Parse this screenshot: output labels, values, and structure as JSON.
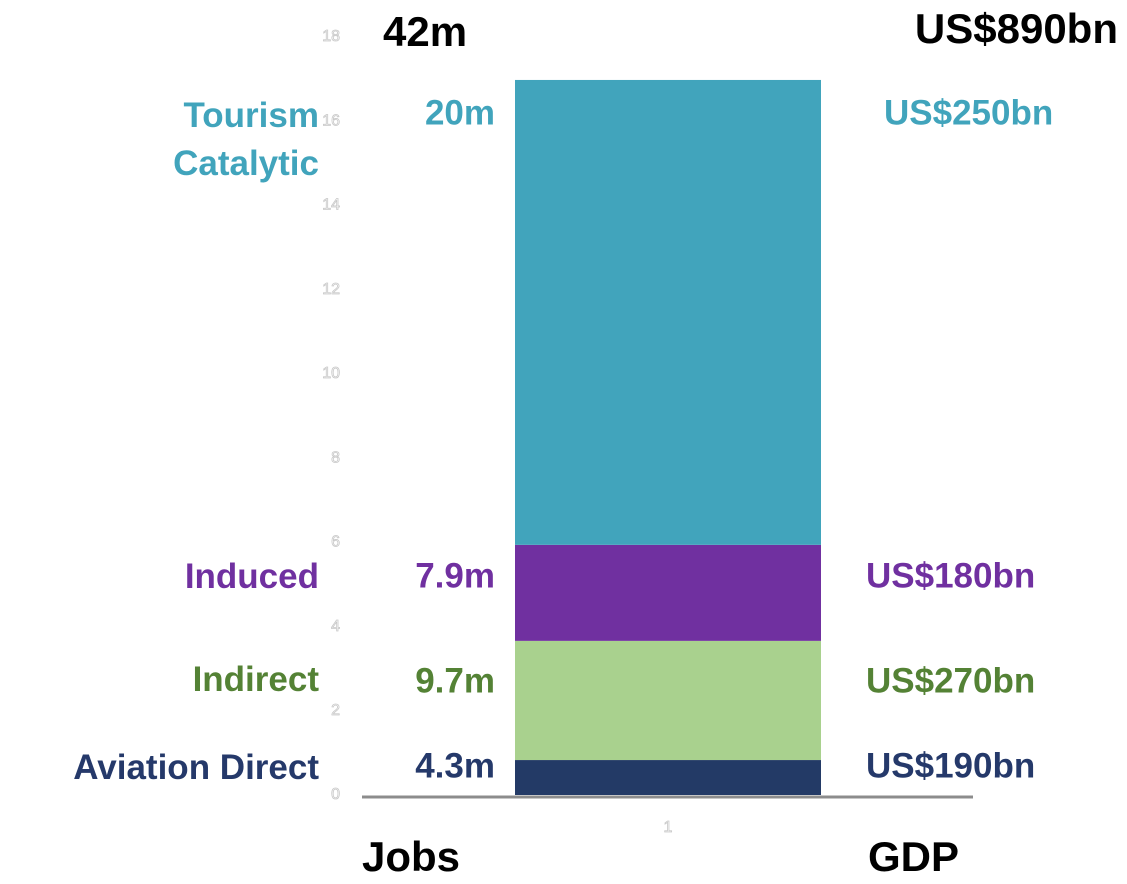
{
  "chart_data": {
    "type": "bar",
    "stacked": true,
    "categories": [
      "1"
    ],
    "series": [
      {
        "name": "Aviation Direct",
        "color": "#233a66",
        "label_color": "#25396a",
        "values": [
          0.83
        ],
        "jobs": "4.3m",
        "gdp": "US$190bn"
      },
      {
        "name": "Indirect",
        "color": "#a9d18e",
        "label_color": "#548235",
        "values": [
          2.83
        ],
        "jobs": "9.7m",
        "gdp": "US$270bn"
      },
      {
        "name": "Induced",
        "color": "#7030a0",
        "label_color": "#7030a0",
        "values": [
          2.28
        ],
        "jobs": "7.9m",
        "gdp": "US$180bn"
      },
      {
        "name": "Tourism Catalytic",
        "color": "#41a4bc",
        "label_color": "#41a4bc",
        "values": [
          11.04
        ],
        "jobs": "20m",
        "gdp": "US$250bn"
      }
    ],
    "ylim": [
      0,
      18
    ],
    "yticks": [
      0,
      2,
      4,
      6,
      8,
      10,
      12,
      14,
      16,
      18
    ],
    "jobs_total": "42m",
    "gdp_total": "US$890bn",
    "jobs_axis_label": "Jobs",
    "gdp_axis_label": "GDP"
  }
}
